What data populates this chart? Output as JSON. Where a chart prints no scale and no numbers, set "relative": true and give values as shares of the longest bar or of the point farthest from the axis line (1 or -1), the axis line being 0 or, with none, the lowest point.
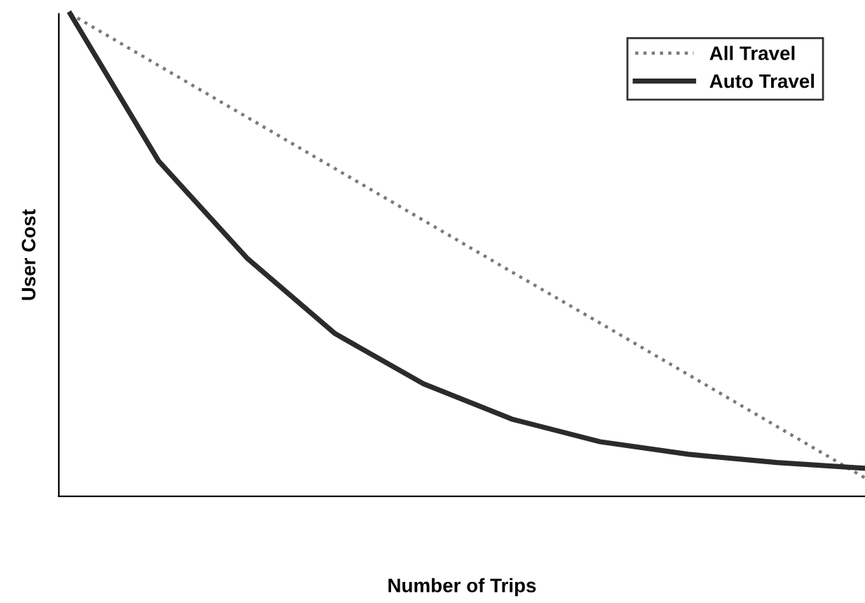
{
  "chart_data": {
    "type": "line",
    "relative": true,
    "xlabel": "Number of Trips",
    "ylabel": "User Cost",
    "categories": [
      null,
      null,
      null,
      null,
      null,
      null,
      null,
      null,
      null,
      null
    ],
    "series": [
      {
        "name": "All Travel",
        "color": "#7a7a7a",
        "line_style": "dotted",
        "values": [
          1,
          0.893,
          0.786,
          0.679,
          0.572,
          0.465,
          0.359,
          0.252,
          0.145,
          0.038
        ]
      },
      {
        "name": "Auto Travel",
        "color": "#2b2b2b",
        "line_style": "solid",
        "values": [
          1,
          0.695,
          0.494,
          0.337,
          0.233,
          0.16,
          0.113,
          0.087,
          0.07,
          0.058
        ]
      }
    ],
    "legend": "top right",
    "grid": false,
    "tick_labels": false
  }
}
